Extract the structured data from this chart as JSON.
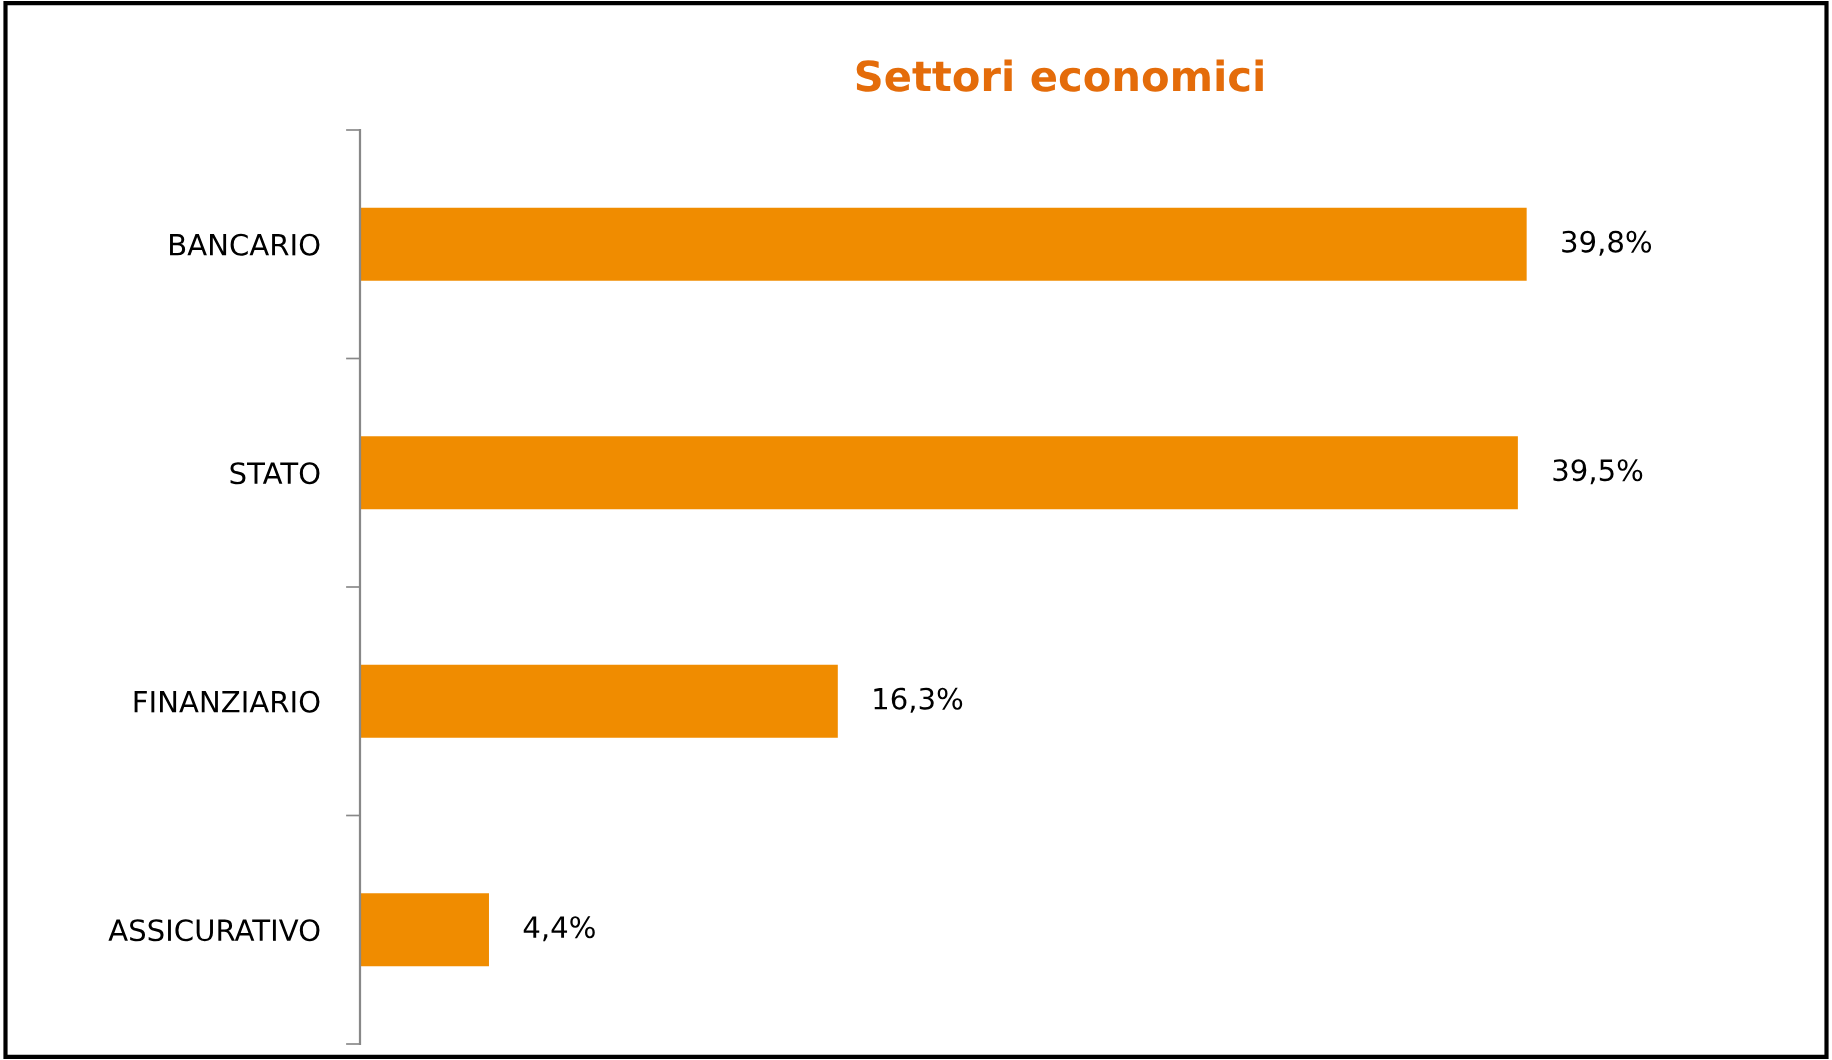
{
  "chart_data": {
    "type": "bar",
    "orientation": "horizontal",
    "title": "Settori economici",
    "categories": [
      "BANCARIO",
      "STATO",
      "FINANZIARIO",
      "ASSICURATIVO"
    ],
    "values": [
      39.8,
      39.5,
      16.3,
      4.4
    ],
    "value_labels": [
      "39,8%",
      "39,5%",
      "16,3%",
      "4,4%"
    ],
    "color": "#f08c00",
    "grid": false,
    "legend": false
  }
}
